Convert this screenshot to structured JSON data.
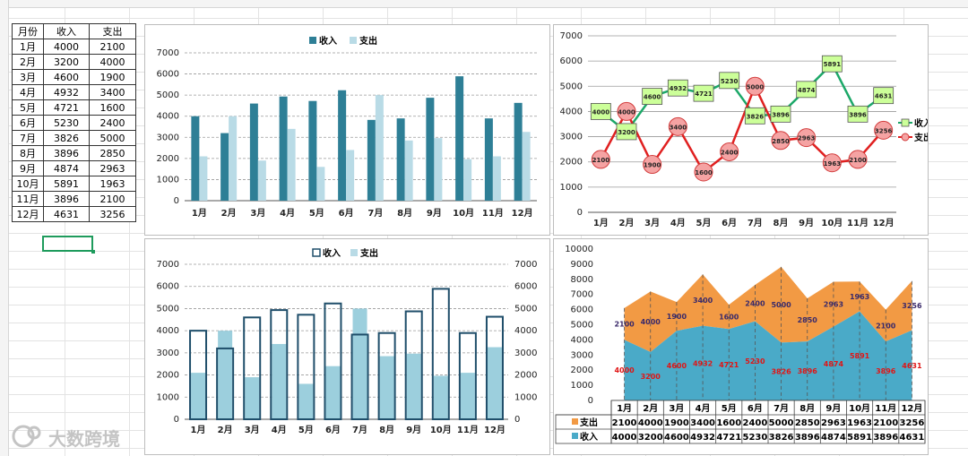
{
  "table": {
    "headers": [
      "月份",
      "收入",
      "支出"
    ],
    "rows": [
      [
        "1月",
        "4000",
        "2100"
      ],
      [
        "2月",
        "3200",
        "4000"
      ],
      [
        "3月",
        "4600",
        "1900"
      ],
      [
        "4月",
        "4932",
        "3400"
      ],
      [
        "5月",
        "4721",
        "1600"
      ],
      [
        "6月",
        "5230",
        "2400"
      ],
      [
        "7月",
        "3826",
        "5000"
      ],
      [
        "8月",
        "3896",
        "2850"
      ],
      [
        "9月",
        "4874",
        "2963"
      ],
      [
        "10月",
        "5891",
        "1963"
      ],
      [
        "11月",
        "3896",
        "2100"
      ],
      [
        "12月",
        "4631",
        "3256"
      ]
    ]
  },
  "colors": {
    "income_dark": "#2e7f96",
    "expense_light": "#b9dbe6",
    "line_income": "#1ca868",
    "line_expense": "#e02020",
    "area_income": "#4aaac8",
    "area_expense": "#f29a44"
  },
  "watermark": "大数跨境",
  "chart_data": [
    {
      "type": "bar",
      "title": "",
      "categories": [
        "1月",
        "2月",
        "3月",
        "4月",
        "5月",
        "6月",
        "7月",
        "8月",
        "9月",
        "10月",
        "11月",
        "12月"
      ],
      "series": [
        {
          "name": "收入",
          "values": [
            4000,
            3200,
            4600,
            4932,
            4721,
            5230,
            3826,
            3896,
            4874,
            5891,
            3896,
            4631
          ]
        },
        {
          "name": "支出",
          "values": [
            2100,
            4000,
            1900,
            3400,
            1600,
            2400,
            5000,
            2850,
            2963,
            1963,
            2100,
            3256
          ]
        }
      ],
      "ylim": [
        0,
        7000
      ],
      "yticks": [
        0,
        1000,
        2000,
        3000,
        4000,
        5000,
        6000,
        7000
      ],
      "legend": "top"
    },
    {
      "type": "line",
      "categories": [
        "1月",
        "2月",
        "3月",
        "4月",
        "5月",
        "6月",
        "7月",
        "8月",
        "9月",
        "10月",
        "11月",
        "12月"
      ],
      "series": [
        {
          "name": "收入",
          "values": [
            4000,
            3200,
            4600,
            4932,
            4721,
            5230,
            3826,
            3896,
            4874,
            5891,
            3896,
            4631
          ]
        },
        {
          "name": "支出",
          "values": [
            2100,
            4000,
            1900,
            3400,
            1600,
            2400,
            5000,
            2850,
            2963,
            1963,
            2100,
            3256
          ]
        }
      ],
      "ylim": [
        0,
        7000
      ],
      "yticks": [
        0,
        1000,
        2000,
        3000,
        4000,
        5000,
        6000,
        7000
      ],
      "legend": "right"
    },
    {
      "type": "bar",
      "categories": [
        "1月",
        "2月",
        "3月",
        "4月",
        "5月",
        "6月",
        "7月",
        "8月",
        "9月",
        "10月",
        "11月",
        "12月"
      ],
      "series": [
        {
          "name": "收入",
          "values": [
            4000,
            3200,
            4600,
            4932,
            4721,
            5230,
            3826,
            3896,
            4874,
            5891,
            3896,
            4631
          ]
        },
        {
          "name": "支出",
          "values": [
            2100,
            4000,
            1900,
            3400,
            1600,
            2400,
            5000,
            2850,
            2963,
            1963,
            2100,
            3256
          ]
        }
      ],
      "ylim": [
        0,
        7000
      ],
      "yticks": [
        0,
        1000,
        2000,
        3000,
        4000,
        5000,
        6000,
        7000
      ],
      "secondary_axis": true,
      "legend": "top"
    },
    {
      "type": "area",
      "stacked": true,
      "categories": [
        "1月",
        "2月",
        "3月",
        "4月",
        "5月",
        "6月",
        "7月",
        "8月",
        "9月",
        "10月",
        "11月",
        "12月"
      ],
      "series": [
        {
          "name": "收入",
          "values": [
            4000,
            3200,
            4600,
            4932,
            4721,
            5230,
            3826,
            3896,
            4874,
            5891,
            3896,
            4631
          ]
        },
        {
          "name": "支出",
          "values": [
            2100,
            4000,
            1900,
            3400,
            1600,
            2400,
            5000,
            2850,
            2963,
            1963,
            2100,
            3256
          ]
        }
      ],
      "ylim": [
        0,
        10000
      ],
      "yticks": [
        0,
        1000,
        2000,
        3000,
        4000,
        5000,
        6000,
        7000,
        8000,
        9000,
        10000
      ],
      "data_table": true
    }
  ]
}
